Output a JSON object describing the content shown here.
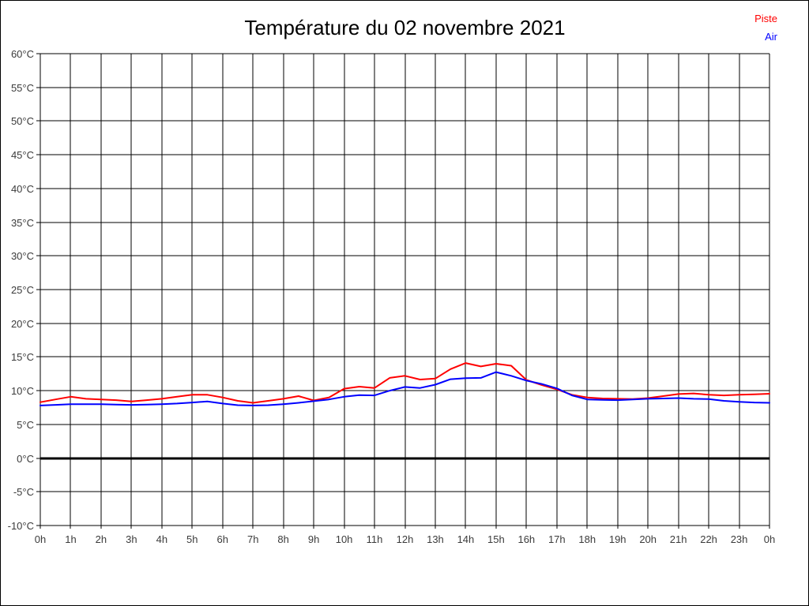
{
  "title": "Température du 02 novembre 2021",
  "chart_data": {
    "type": "line",
    "title": "Température du 02 novembre 2021",
    "xlabel": "",
    "ylabel": "",
    "xlim": [
      0,
      24
    ],
    "ylim": [
      -10,
      60
    ],
    "y_step": 5,
    "grid": true,
    "grid_color": "#000000",
    "zero_line": true,
    "zero_line_value": 0,
    "legend_position": "top-right",
    "x_ticks": [
      "0h",
      "1h",
      "2h",
      "3h",
      "4h",
      "5h",
      "6h",
      "7h",
      "8h",
      "9h",
      "10h",
      "11h",
      "12h",
      "13h",
      "14h",
      "15h",
      "16h",
      "17h",
      "18h",
      "19h",
      "20h",
      "21h",
      "22h",
      "23h",
      "0h"
    ],
    "y_ticks": [
      "60°C",
      "55°C",
      "50°C",
      "45°C",
      "40°C",
      "35°C",
      "30°C",
      "25°C",
      "20°C",
      "15°C",
      "10°C",
      "5°C",
      "0°C",
      "-5°C",
      "-10°C"
    ],
    "x": [
      0,
      0.5,
      1,
      1.5,
      2,
      2.5,
      3,
      3.5,
      4,
      4.5,
      5,
      5.5,
      6,
      6.5,
      7,
      7.5,
      8,
      8.5,
      9,
      9.5,
      10,
      10.5,
      11,
      11.5,
      12,
      12.5,
      13,
      13.5,
      14,
      14.5,
      15,
      15.5,
      16,
      16.5,
      17,
      17.5,
      18,
      18.5,
      19,
      19.5,
      20,
      20.5,
      21,
      21.5,
      22,
      22.5,
      23,
      23.5,
      24
    ],
    "series": [
      {
        "name": "Piste",
        "color": "#ff0000",
        "values": [
          8.3,
          8.7,
          9.1,
          8.8,
          8.7,
          8.6,
          8.4,
          8.6,
          8.8,
          9.1,
          9.4,
          9.4,
          9.0,
          8.5,
          8.2,
          8.5,
          8.8,
          9.2,
          8.55,
          9.0,
          10.3,
          10.6,
          10.4,
          11.9,
          12.2,
          11.65,
          11.8,
          13.2,
          14.1,
          13.6,
          14.0,
          13.7,
          11.6,
          10.85,
          10.2,
          9.4,
          9.0,
          8.85,
          8.8,
          8.75,
          8.9,
          9.2,
          9.5,
          9.6,
          9.4,
          9.3,
          9.4,
          9.45,
          9.55
        ]
      },
      {
        "name": "Air",
        "color": "#0000ff",
        "values": [
          7.8,
          7.9,
          8.0,
          8.0,
          8.0,
          7.95,
          7.9,
          7.95,
          8.0,
          8.1,
          8.25,
          8.4,
          8.1,
          7.85,
          7.8,
          7.85,
          8.0,
          8.2,
          8.45,
          8.7,
          9.1,
          9.35,
          9.3,
          10.0,
          10.55,
          10.4,
          10.9,
          11.7,
          11.85,
          11.9,
          12.75,
          12.2,
          11.5,
          11.0,
          10.35,
          9.3,
          8.7,
          8.65,
          8.6,
          8.7,
          8.8,
          8.85,
          8.9,
          8.8,
          8.75,
          8.5,
          8.35,
          8.25,
          8.2
        ]
      }
    ]
  }
}
